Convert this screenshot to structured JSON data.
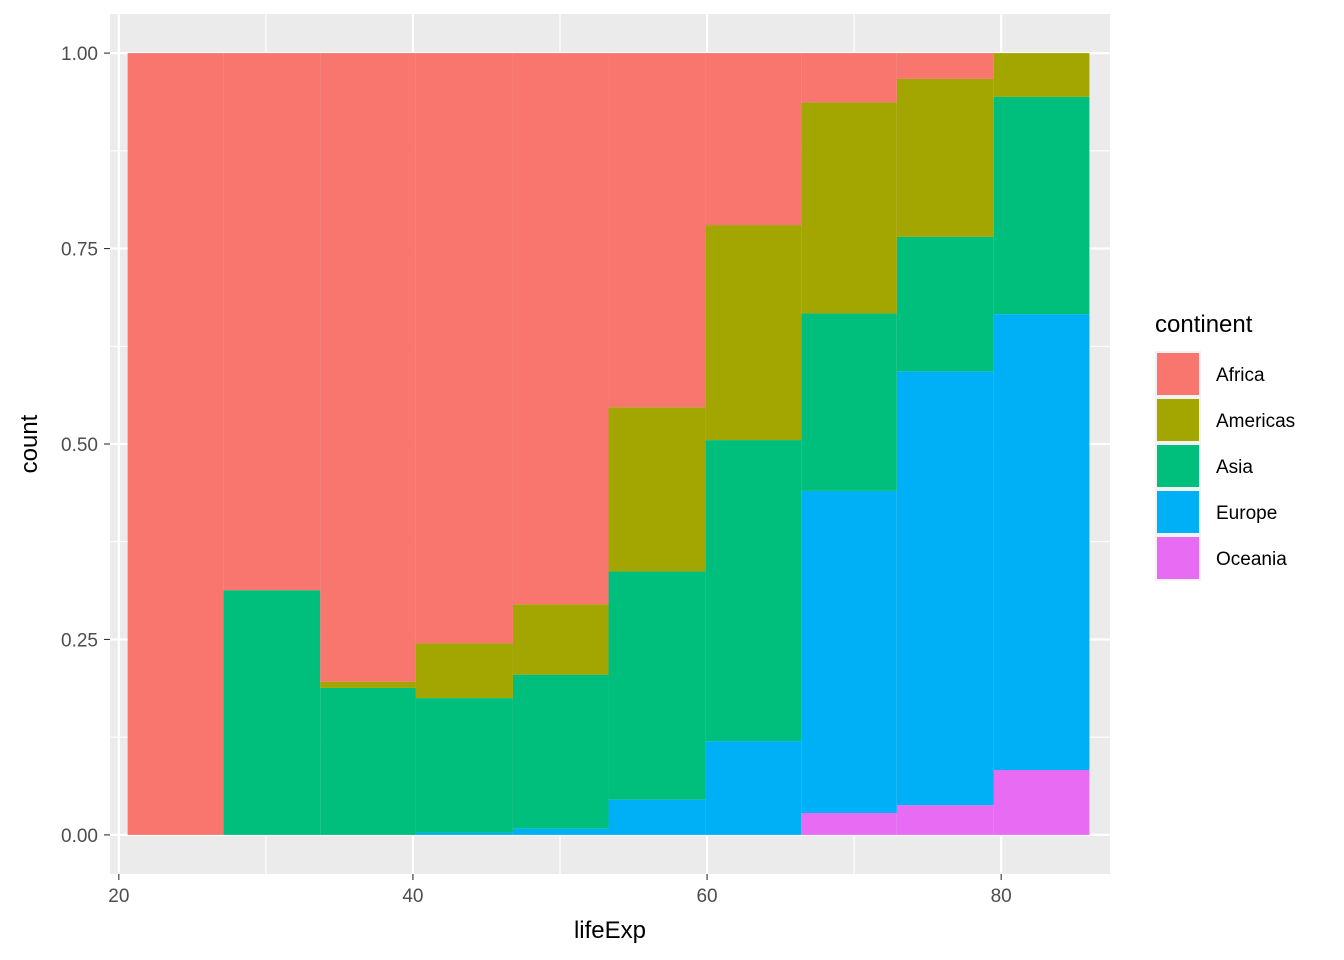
{
  "chart_data": {
    "type": "bar",
    "subtype": "stacked-fill-histogram",
    "xlabel": "lifeExp",
    "ylabel": "count",
    "xlim": [
      19.4,
      87.4
    ],
    "ylim": [
      -0.05,
      1.05
    ],
    "x_ticks": [
      20,
      40,
      60,
      80
    ],
    "x_tick_labels": [
      "20",
      "40",
      "60",
      "80"
    ],
    "y_ticks": [
      0,
      0.25,
      0.5,
      0.75,
      1.0
    ],
    "y_tick_labels": [
      "0.00",
      "0.25",
      "0.50",
      "0.75",
      "1.00"
    ],
    "grid": true,
    "legend": {
      "title": "continent",
      "position": "right"
    },
    "bin_edges": [
      20.6,
      27.1,
      33.7,
      40.2,
      46.8,
      53.3,
      59.9,
      66.4,
      72.9,
      79.5,
      86.0
    ],
    "series": [
      {
        "name": "Oceania",
        "color": "#E76BF3",
        "values": [
          0,
          0,
          0,
          0,
          0,
          0,
          0,
          0.028,
          0.038,
          0.083
        ]
      },
      {
        "name": "Europe",
        "color": "#00B0F6",
        "values": [
          0,
          0,
          0,
          0.003,
          0.008,
          0.045,
          0.12,
          0.412,
          0.555,
          0.583
        ]
      },
      {
        "name": "Asia",
        "color": "#00BF7D",
        "values": [
          0,
          0.313,
          0.188,
          0.172,
          0.197,
          0.292,
          0.385,
          0.227,
          0.172,
          0.278
        ]
      },
      {
        "name": "Americas",
        "color": "#A3A500",
        "values": [
          0,
          0,
          0.008,
          0.07,
          0.09,
          0.21,
          0.275,
          0.27,
          0.202,
          0.056
        ]
      },
      {
        "name": "Africa",
        "color": "#F8766D",
        "values": [
          1.0,
          0.687,
          0.804,
          0.755,
          0.705,
          0.453,
          0.22,
          0.063,
          0.033,
          0
        ]
      }
    ],
    "legend_order": [
      "Africa",
      "Americas",
      "Asia",
      "Europe",
      "Oceania"
    ]
  }
}
